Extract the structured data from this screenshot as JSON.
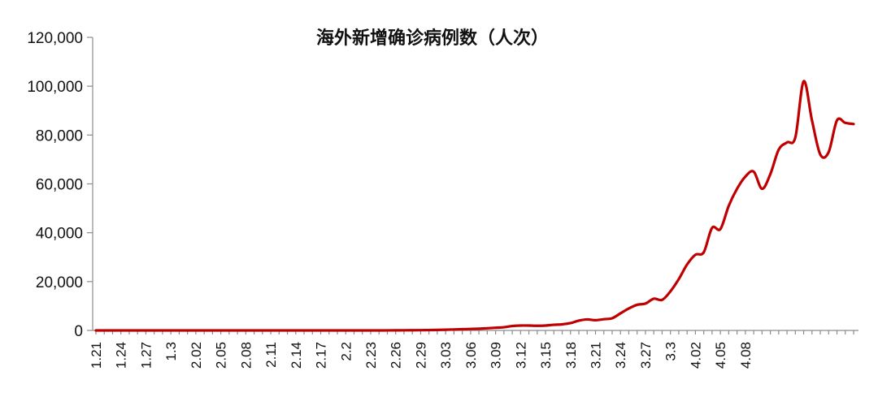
{
  "chart_data": {
    "type": "line",
    "title": "海外新增确诊病例数（人次）",
    "xlabel": "",
    "ylabel": "",
    "ylim": [
      0,
      120000
    ],
    "grid": false,
    "legend": "none",
    "yticks": [
      "0",
      "20,000",
      "40,000",
      "60,000",
      "80,000",
      "100,000",
      "120,000"
    ],
    "ytick_values": [
      0,
      20000,
      40000,
      60000,
      80000,
      100000,
      120000
    ],
    "xtick_labels": [
      "1.21",
      "1.24",
      "1.27",
      "1.3",
      "2.02",
      "2.05",
      "2.08",
      "2.11",
      "2.14",
      "2.17",
      "2.2",
      "2.23",
      "2.26",
      "2.29",
      "3.03",
      "3.06",
      "3.09",
      "3.12",
      "3.15",
      "3.18",
      "3.21",
      "3.24",
      "3.27",
      "3.3",
      "4.02",
      "4.05",
      "4.08"
    ],
    "xtick_every": 3,
    "colors": {
      "series": "#c00000",
      "axis": "#8c8c8c"
    },
    "series": [
      {
        "values": [
          0,
          0,
          0,
          0,
          0,
          0,
          0,
          0,
          0,
          0,
          0,
          0,
          0,
          0,
          0,
          0,
          0,
          0,
          0,
          0,
          0,
          0,
          0,
          0,
          0,
          0,
          0,
          0,
          0,
          0,
          0,
          0,
          0,
          0,
          0,
          20,
          40,
          60,
          80,
          100,
          150,
          200,
          300,
          400,
          500,
          600,
          700,
          900,
          1100,
          1300,
          1800,
          2000,
          2000,
          1900,
          2000,
          2300,
          2500,
          3000,
          4000,
          4500,
          4200,
          4600,
          5000,
          7000,
          9000,
          10500,
          11000,
          13000,
          12500,
          16000,
          21000,
          27000,
          31000,
          32000,
          42000,
          41500,
          51000,
          58000,
          63000,
          65000,
          58000,
          64000,
          74000,
          77000,
          79000,
          102000,
          86000,
          72000,
          73000,
          86000,
          85000,
          84500
        ]
      }
    ]
  }
}
